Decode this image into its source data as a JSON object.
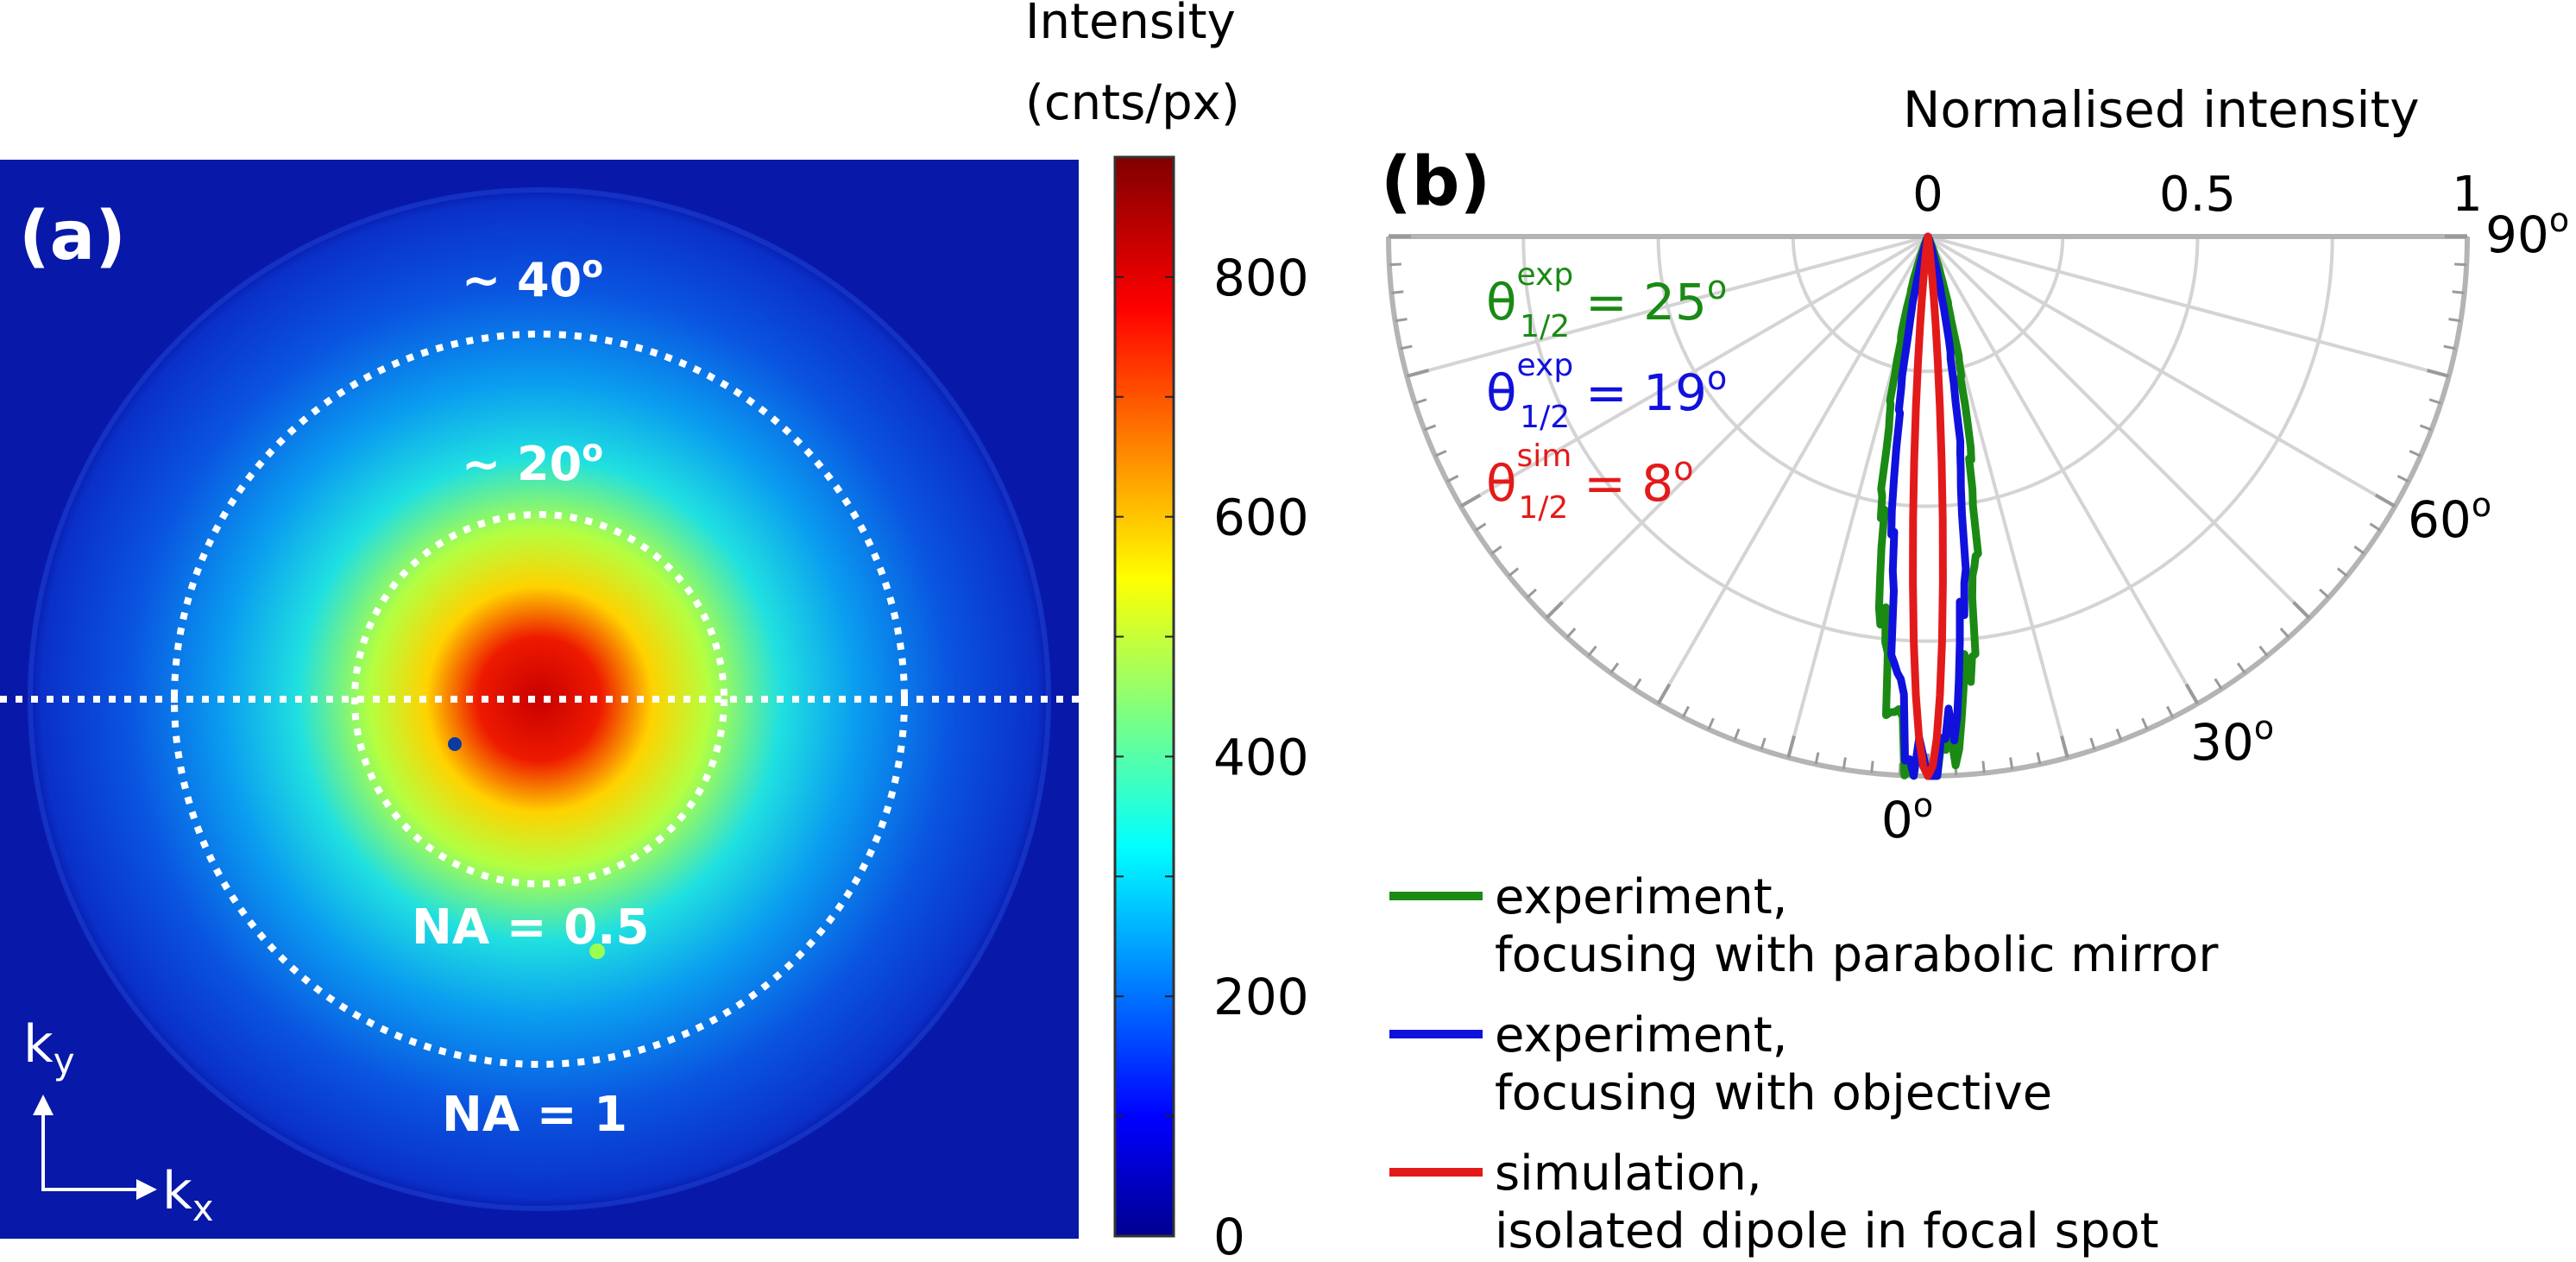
{
  "chart_data": [
    {
      "type": "heatmap",
      "panel_label": "(a)",
      "description_labels": {
        "ring_40": "~ 40",
        "ring_20": "~ 20",
        "degree_symbol": "o",
        "na_05": "NA = 0.5",
        "na_1": "NA = 1"
      },
      "axes": {
        "x_label": "k",
        "x_sub": "x",
        "y_label": "k",
        "y_sub": "y"
      },
      "colorbar": {
        "title_line1": "Intensity",
        "title_line2": "(cnts/px)",
        "range": [
          0,
          900
        ],
        "ticks": [
          0,
          200,
          400,
          600,
          800
        ],
        "tick_labels": [
          "0",
          "200",
          "400",
          "600",
          "800"
        ],
        "colormap": "jet"
      },
      "image_summary": {
        "background_level": 40,
        "center_peak": 850,
        "inner_ring_level": 420,
        "outer_ring_level": 200
      }
    },
    {
      "type": "polar",
      "panel_label": "(b)",
      "title": "Normalised intensity",
      "radial_range": [
        0,
        1
      ],
      "radial_ticks": [
        0,
        0.5,
        1
      ],
      "radial_tick_labels": [
        "0",
        "0.5",
        "1"
      ],
      "angle_labels": [
        {
          "value": 0,
          "text": "0"
        },
        {
          "value": 30,
          "text": "30"
        },
        {
          "value": 60,
          "text": "60"
        },
        {
          "value": 90,
          "text": "90"
        }
      ],
      "degree_symbol": "o",
      "annotations": [
        {
          "symbol": "θ",
          "sup": "exp",
          "sub": "1/2",
          "text": "= 25",
          "color": "#1a8a14"
        },
        {
          "symbol": "θ",
          "sup": "exp",
          "sub": "1/2",
          "text": "= 19",
          "color": "#1111dd"
        },
        {
          "symbol": "θ",
          "sup": "sim",
          "sub": "1/2",
          "text": "= 8",
          "color": "#e31a1a"
        }
      ],
      "series": [
        {
          "name": "experiment, focusing with parabolic mirror",
          "color": "#1a8a14",
          "half_width_deg": 25
        },
        {
          "name": "experiment, focusing with objective",
          "color": "#1111dd",
          "half_width_deg": 19
        },
        {
          "name": "simulation, isolated dipole in focal spot",
          "color": "#e31a1a",
          "half_width_deg": 8
        }
      ],
      "legend": [
        {
          "line1": "experiment,",
          "line2": "focusing with parabolic mirror",
          "color": "#1a8a14"
        },
        {
          "line1": "experiment,",
          "line2": "focusing with objective",
          "color": "#1111dd"
        },
        {
          "line1": "simulation,",
          "line2": "isolated dipole in focal spot",
          "color": "#e31a1a"
        }
      ]
    }
  ]
}
